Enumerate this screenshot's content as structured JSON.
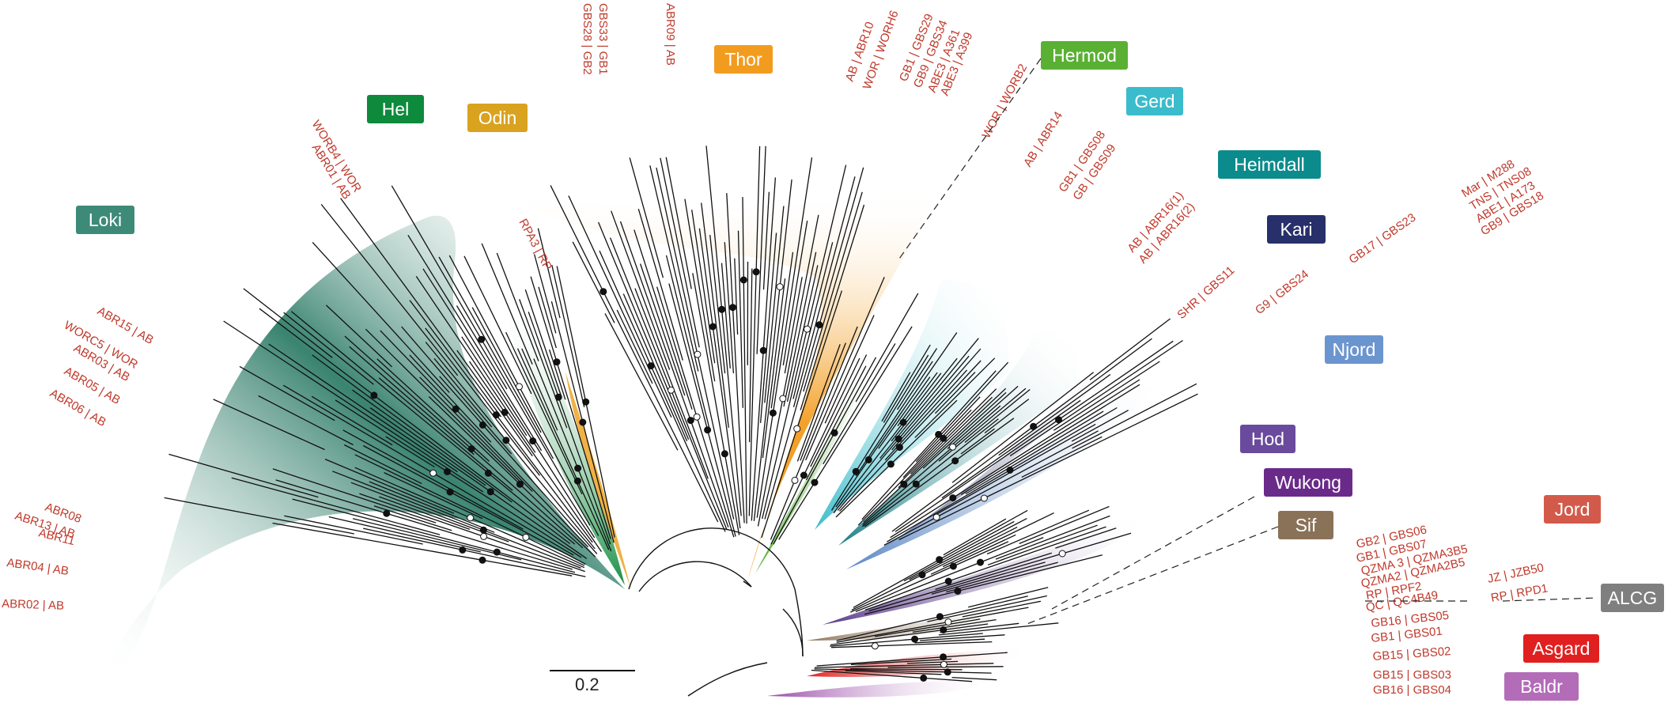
{
  "groups": [
    {
      "key": "loki",
      "name": "Loki",
      "bg": "#3e8a78",
      "fg": "#ffffff"
    },
    {
      "key": "hel",
      "name": "Hel",
      "bg": "#0e8a3c",
      "fg": "#ffffff"
    },
    {
      "key": "odin",
      "name": "Odin",
      "bg": "#d9a21f",
      "fg": "#ffffff"
    },
    {
      "key": "thor",
      "name": "Thor",
      "bg": "#f29c1f",
      "fg": "#ffffff"
    },
    {
      "key": "hermod",
      "name": "Hermod",
      "bg": "#5ab033",
      "fg": "#ffffff"
    },
    {
      "key": "gerd",
      "name": "Gerd",
      "bg": "#3bbccc",
      "fg": "#ffffff"
    },
    {
      "key": "heimdall",
      "name": "Heimdall",
      "bg": "#0c8b8c",
      "fg": "#ffffff"
    },
    {
      "key": "kari",
      "name": "Kari",
      "bg": "#27306a",
      "fg": "#ffffff"
    },
    {
      "key": "njord",
      "name": "Njord",
      "bg": "#6b95cf",
      "fg": "#ffffff"
    },
    {
      "key": "hod",
      "name": "Hod",
      "bg": "#6a4a9c",
      "fg": "#ffffff"
    },
    {
      "key": "wukong",
      "name": "Wukong",
      "bg": "#6a2a8a",
      "fg": "#ffffff"
    },
    {
      "key": "sif",
      "name": "Sif",
      "bg": "#8a7258",
      "fg": "#ffffff"
    },
    {
      "key": "jord",
      "name": "Jord",
      "bg": "#d35a4a",
      "fg": "#ffffff"
    },
    {
      "key": "alcg",
      "name": "ALCG",
      "bg": "#7f7f7f",
      "fg": "#ffffff"
    },
    {
      "key": "asgard",
      "name": "Asgard",
      "bg": "#e02020",
      "fg": "#ffffff"
    },
    {
      "key": "baldr",
      "name": "Baldr",
      "bg": "#b36cb8",
      "fg": "#ffffff"
    }
  ],
  "taxa_left": [
    "ABR15 | AB",
    "WORC5 | WOR",
    "ABR03 | AB",
    "ABR05 | AB",
    "ABR06 | AB",
    "ABR08",
    "ABR13 | AB",
    "ABR11",
    "ABR04 | AB",
    "ABR02 | AB"
  ],
  "taxa_top": [
    "WORB4 | WOR",
    "ABR01 | AB",
    "RPA3 | RP",
    "GBS28 | GB2",
    "GBS33 | GB1",
    "ABR09 | AB",
    "AB | ABR10",
    "WOR | WORH6",
    "GB1 | GBS29",
    "GB9 | GBS34",
    "ABE3 | A361",
    "ABE3 | A399",
    "WOR | WORB2",
    "AB | ABR14",
    "GB1 | GBS08",
    "GB | GBS09",
    "AB | ABR16(1)",
    "AB | ABR16(2)",
    "SHR | GBS11",
    "G9 | GBS24",
    "GB17 | GBS23",
    "Mar | M288",
    "TNS | TNS08",
    "ABE1 | A173",
    "GB9 | GBS18"
  ],
  "taxa_bottom": [
    "GB2 | GBS06",
    "GB1 | GBS07",
    "QZMA 3 | QZMA3B5",
    "QZMA2 | QZMA2B5",
    "JZ | JZB50",
    "RP | RPF2",
    "QC | QC4B49",
    "RP | RPD1",
    "GB16 | GBS05",
    "GB1 | GBS01",
    "GB15 | GBS02",
    "GB15 | GBS03",
    "GB16 | GBS04"
  ],
  "scale_bar": {
    "label": "0.2"
  },
  "colors": {
    "branch": "#111111",
    "taxon_label": "#c0392b",
    "leader": "#222222"
  }
}
